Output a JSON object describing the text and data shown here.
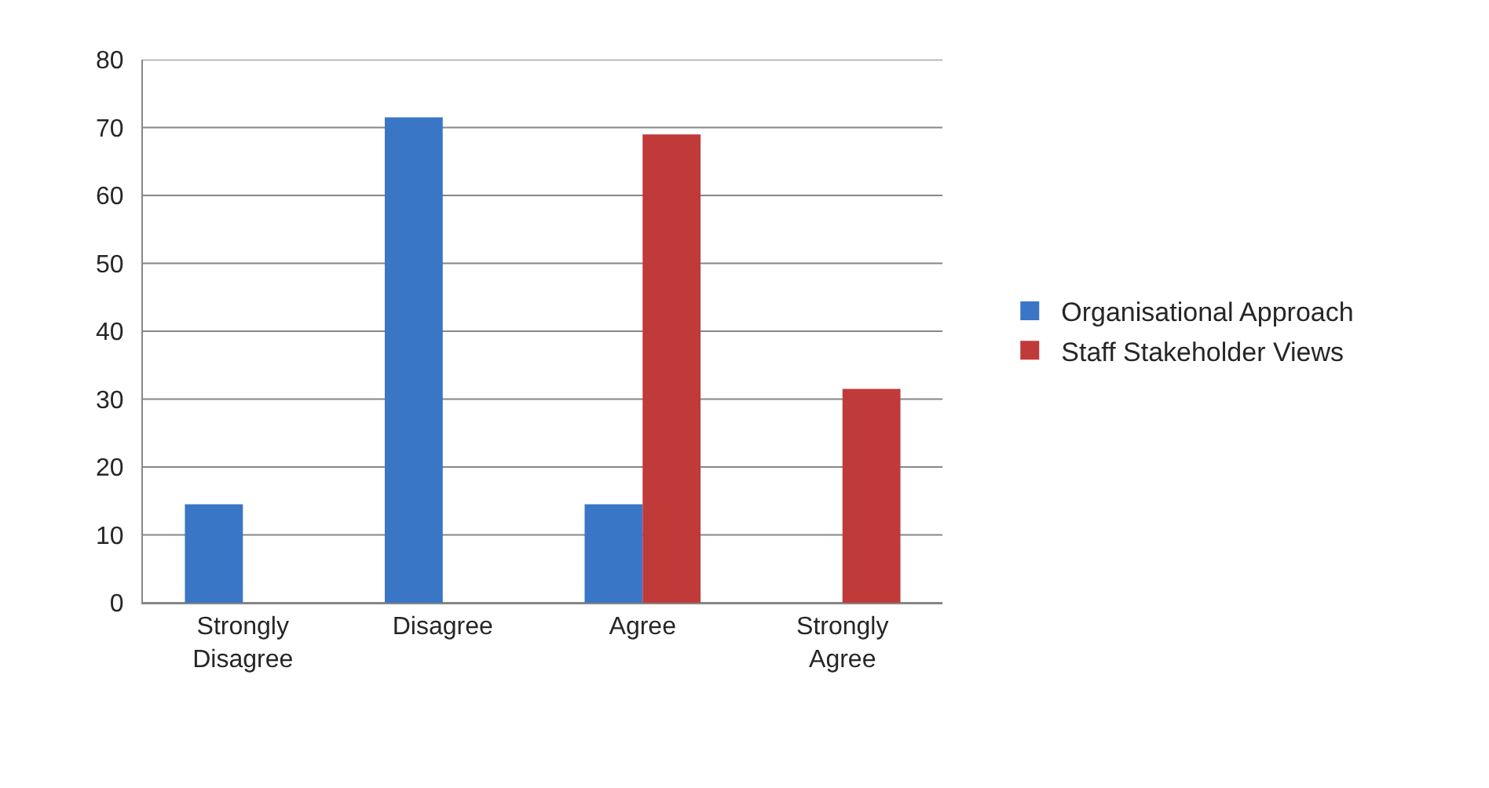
{
  "chart_data": {
    "type": "bar",
    "categories": [
      "Strongly Disagree",
      "Disagree",
      "Agree",
      "Strongly Agree"
    ],
    "series": [
      {
        "name": "Organisational Approach",
        "color": "#3a76c6",
        "values": [
          14.5,
          71.5,
          14.5,
          null
        ]
      },
      {
        "name": "Staff Stakeholder Views",
        "color": "#c03a3a",
        "values": [
          null,
          null,
          69,
          31.5
        ]
      }
    ],
    "ylim": [
      0,
      80
    ],
    "yticks": [
      0,
      10,
      20,
      30,
      40,
      50,
      60,
      70,
      80
    ],
    "grid": "y",
    "legend": "right"
  }
}
